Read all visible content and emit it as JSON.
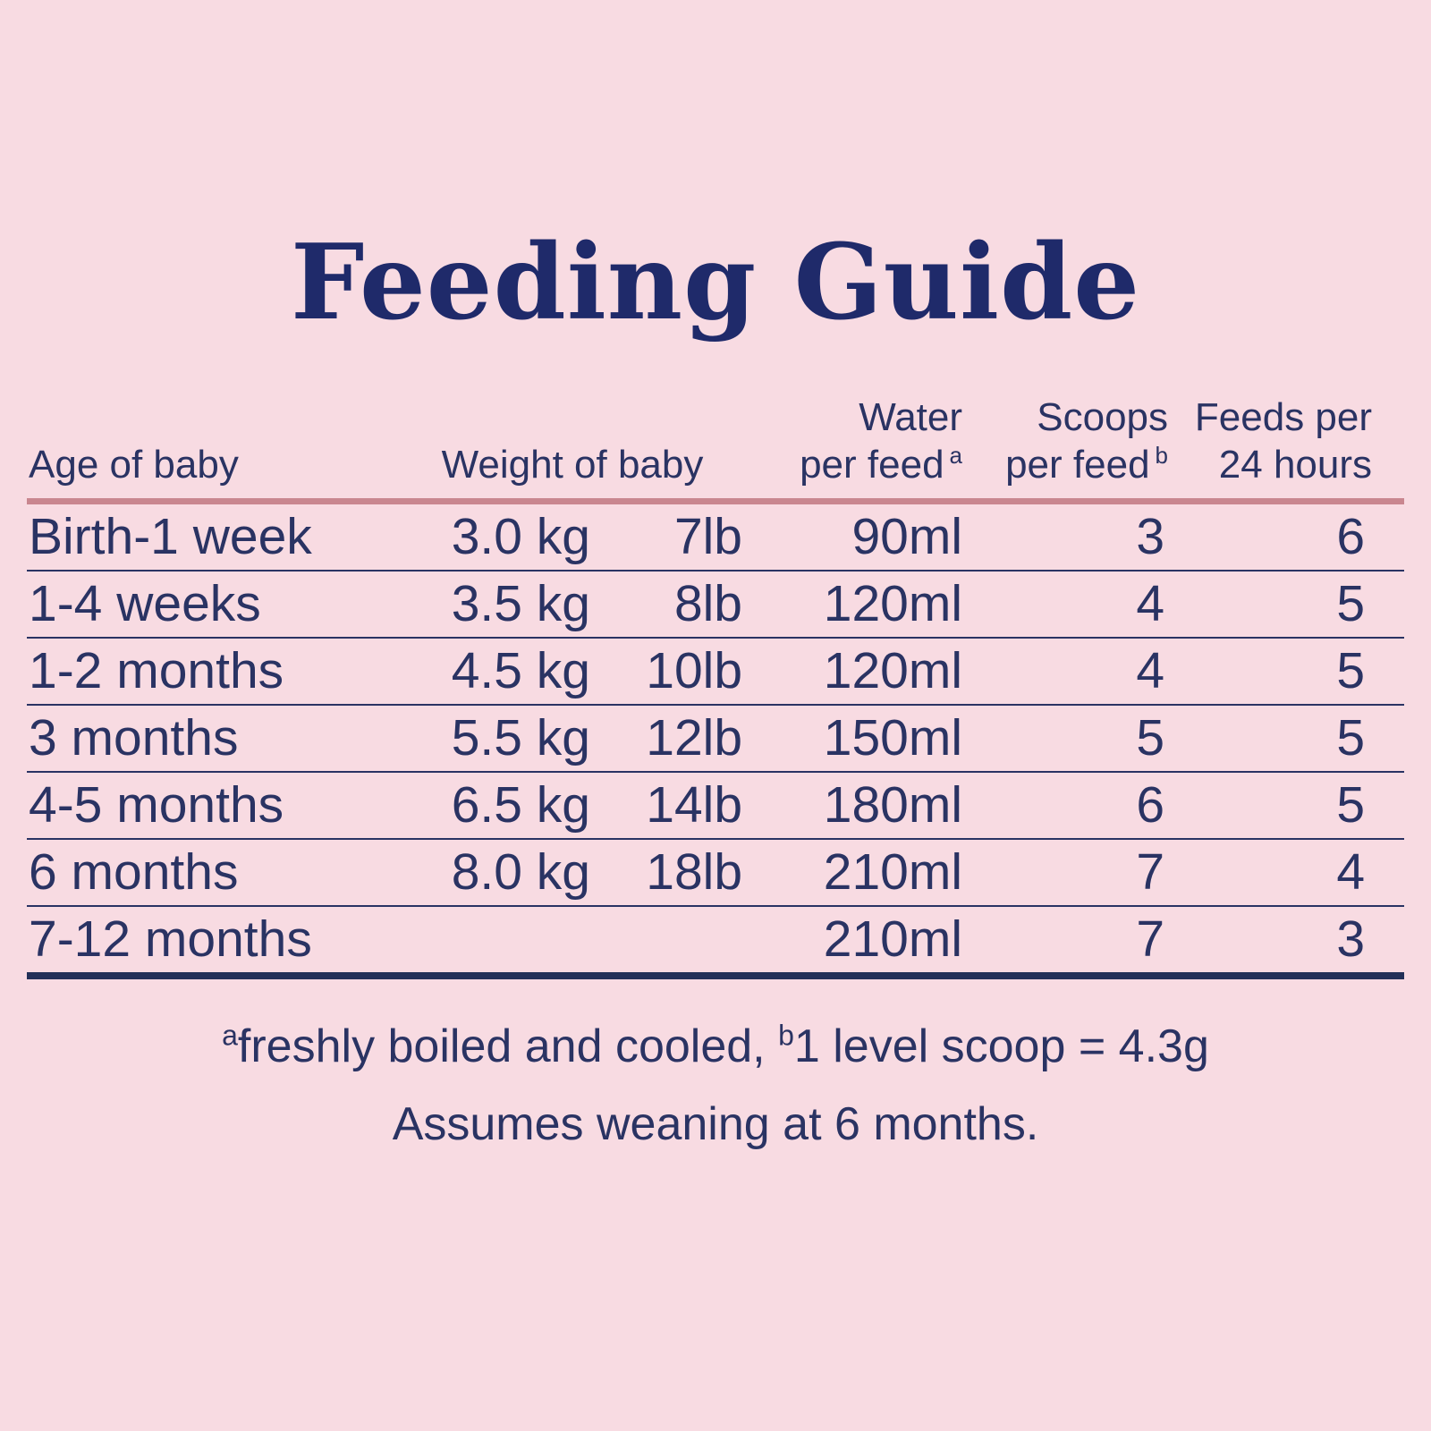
{
  "page": {
    "background_color": "#f8dbe2",
    "text_color": "#2a3363",
    "accent_rose": "#c9868f",
    "rule_navy": "#233058"
  },
  "title": {
    "text": "Feeding Guide",
    "color": "#1f2a6a"
  },
  "table": {
    "headers": {
      "age": "Age of baby",
      "weight": "Weight of baby",
      "water_line1": "Water",
      "water_line2": "per feed",
      "water_sup": "a",
      "scoops_line1": "Scoops",
      "scoops_line2": "per feed",
      "scoops_sup": "b",
      "feeds_line1": "Feeds per",
      "feeds_line2": "24 hours"
    },
    "rows": [
      {
        "age": "Birth-1 week",
        "kg": "3.0 kg",
        "lb": "7lb",
        "water": "90ml",
        "scoops": "3",
        "feeds": "6"
      },
      {
        "age": "1-4 weeks",
        "kg": "3.5 kg",
        "lb": "8lb",
        "water": "120ml",
        "scoops": "4",
        "feeds": "5"
      },
      {
        "age": "1-2 months",
        "kg": "4.5 kg",
        "lb": "10lb",
        "water": "120ml",
        "scoops": "4",
        "feeds": "5"
      },
      {
        "age": "3 months",
        "kg": "5.5 kg",
        "lb": "12lb",
        "water": "150ml",
        "scoops": "5",
        "feeds": "5"
      },
      {
        "age": "4-5 months",
        "kg": "6.5 kg",
        "lb": "14lb",
        "water": "180ml",
        "scoops": "6",
        "feeds": "5"
      },
      {
        "age": "6 months",
        "kg": "8.0 kg",
        "lb": "18lb",
        "water": "210ml",
        "scoops": "7",
        "feeds": "4"
      },
      {
        "age": "7-12 months",
        "kg": "",
        "lb": "",
        "water": "210ml",
        "scoops": "7",
        "feeds": "3"
      }
    ]
  },
  "footnotes": {
    "sup_a": "a",
    "text_a": "freshly boiled and cooled, ",
    "sup_b": "b",
    "text_b": "1 level scoop = 4.3g",
    "line2": "Assumes weaning at 6 months."
  }
}
